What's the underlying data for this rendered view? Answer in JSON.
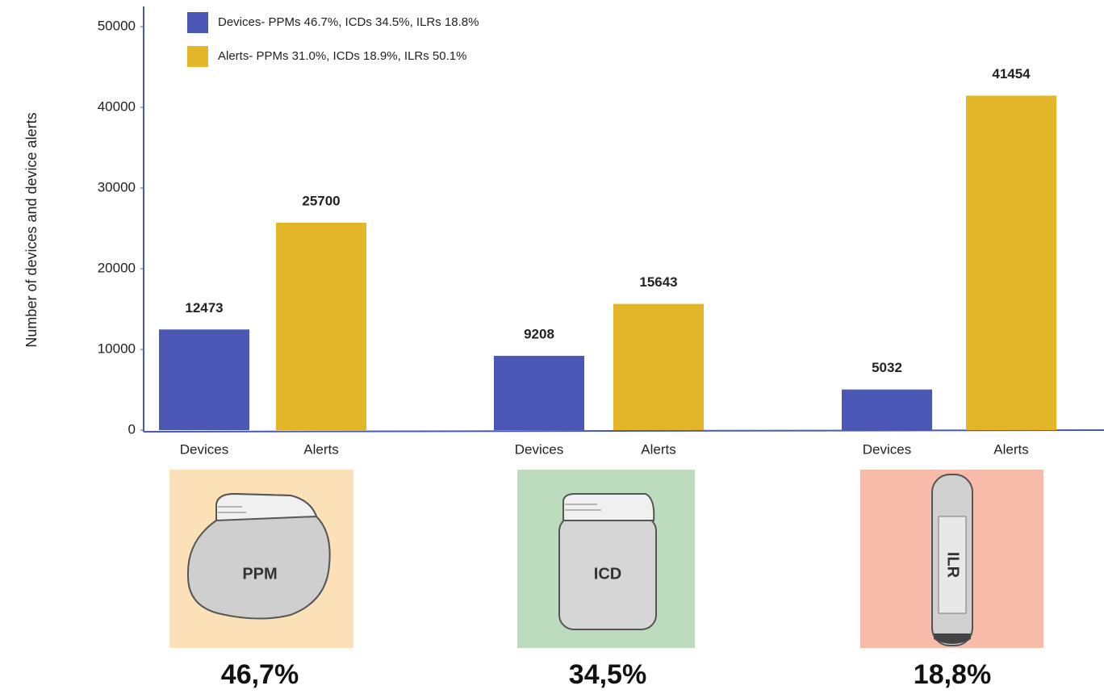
{
  "chart_data": {
    "type": "bar",
    "y_label": "Number of devices and device alerts",
    "categories": [
      "Devices",
      "Alerts",
      "Devices",
      "Alerts",
      "Devices",
      "Alerts"
    ],
    "values": [
      12473,
      25700,
      9208,
      15643,
      5032,
      41454
    ],
    "colors": [
      "#4a57b5",
      "#e3b62a",
      "#4a57b5",
      "#e3b62a",
      "#4a57b5",
      "#e3b62a"
    ],
    "legend": [
      {
        "label": "Devices- PPMs 46.7%, ICDs 34.5%, ILRs 18.8%",
        "color": "#4a57b5"
      },
      {
        "label": "Alerts- PPMs 31.0%, ICDs 18.9%, ILRs 50.1%",
        "color": "#e3b62a"
      }
    ],
    "ylim": [
      0,
      52500
    ],
    "yticks": [
      0,
      10000,
      20000,
      30000,
      40000,
      50000
    ],
    "grid": false
  },
  "panels": [
    {
      "icon_label": "PPM",
      "percentage": "46,7%",
      "color": "#fbe0b8"
    },
    {
      "icon_label": "ICD",
      "percentage": "34,5%",
      "color": "#bcdcbd"
    },
    {
      "icon_label": "ILR",
      "percentage": "18,8%",
      "color": "#f7bba9"
    }
  ]
}
